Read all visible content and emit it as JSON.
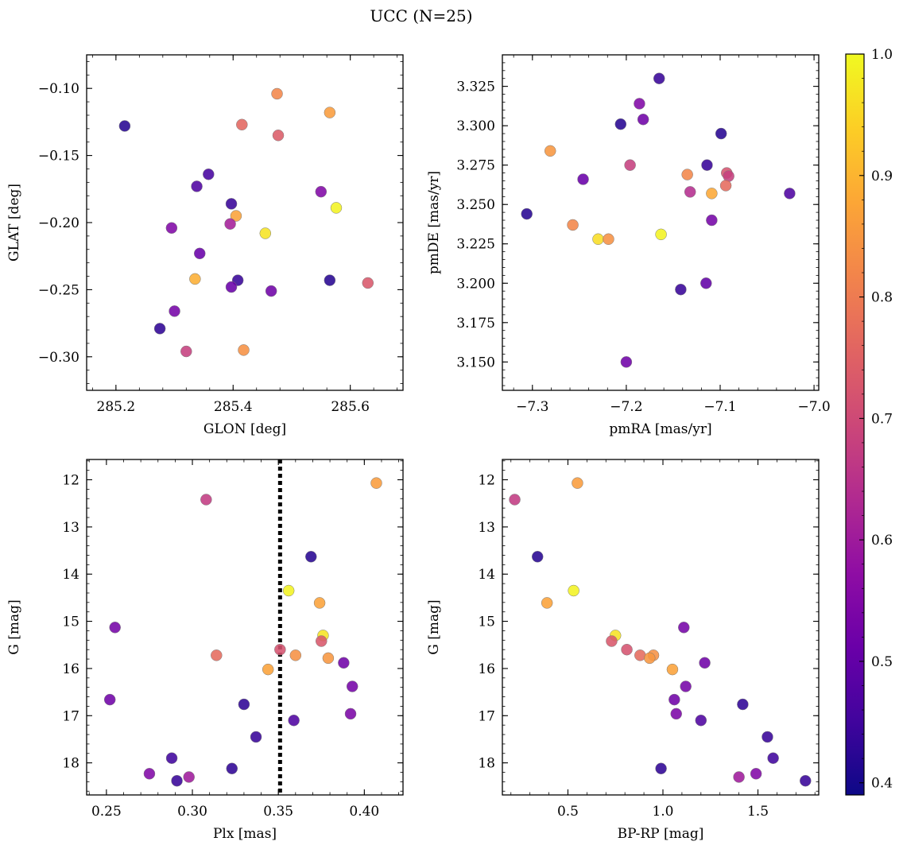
{
  "figure": {
    "title": "UCC (N=25)"
  },
  "colorbar": {
    "min": 0.39,
    "max": 1.0,
    "ticks": [
      0.4,
      0.5,
      0.6,
      0.7,
      0.8,
      0.9,
      1.0
    ],
    "tick_labels": [
      "0.4",
      "0.5",
      "0.6",
      "0.7",
      "0.8",
      "0.9",
      "1.0"
    ],
    "colormap": "plasma"
  },
  "chart_data": [
    {
      "type": "scatter",
      "xlabel": "GLON [deg]",
      "ylabel": "GLAT [deg]",
      "xlim": [
        285.15,
        285.69
      ],
      "ylim": [
        -0.325,
        -0.075
      ],
      "x_ticks": [
        285.2,
        285.4,
        285.6
      ],
      "x_tick_labels": [
        "285.2",
        "285.4",
        "285.6"
      ],
      "y_ticks": [
        -0.1,
        -0.15,
        -0.2,
        -0.25,
        -0.3
      ],
      "y_tick_labels": [
        "−0.10",
        "−0.15",
        "−0.20",
        "−0.25",
        "−0.30"
      ],
      "y_inverted": false,
      "points": [
        {
          "x": 285.215,
          "y": -0.128,
          "c": 0.42
        },
        {
          "x": 285.475,
          "y": -0.104,
          "c": 0.82
        },
        {
          "x": 285.565,
          "y": -0.118,
          "c": 0.86
        },
        {
          "x": 285.415,
          "y": -0.127,
          "c": 0.76
        },
        {
          "x": 285.477,
          "y": -0.135,
          "c": 0.74
        },
        {
          "x": 285.358,
          "y": -0.164,
          "c": 0.46
        },
        {
          "x": 285.338,
          "y": -0.173,
          "c": 0.47
        },
        {
          "x": 285.55,
          "y": -0.177,
          "c": 0.55
        },
        {
          "x": 285.397,
          "y": -0.186,
          "c": 0.44
        },
        {
          "x": 285.576,
          "y": -0.189,
          "c": 0.99
        },
        {
          "x": 285.405,
          "y": -0.195,
          "c": 0.87
        },
        {
          "x": 285.395,
          "y": -0.201,
          "c": 0.61
        },
        {
          "x": 285.295,
          "y": -0.204,
          "c": 0.55
        },
        {
          "x": 285.455,
          "y": -0.208,
          "c": 0.97
        },
        {
          "x": 285.343,
          "y": -0.223,
          "c": 0.51
        },
        {
          "x": 285.335,
          "y": -0.242,
          "c": 0.89
        },
        {
          "x": 285.408,
          "y": -0.243,
          "c": 0.44
        },
        {
          "x": 285.565,
          "y": -0.243,
          "c": 0.42
        },
        {
          "x": 285.63,
          "y": -0.245,
          "c": 0.73
        },
        {
          "x": 285.397,
          "y": -0.248,
          "c": 0.51
        },
        {
          "x": 285.465,
          "y": -0.251,
          "c": 0.52
        },
        {
          "x": 285.3,
          "y": -0.266,
          "c": 0.53
        },
        {
          "x": 285.275,
          "y": -0.279,
          "c": 0.43
        },
        {
          "x": 285.32,
          "y": -0.296,
          "c": 0.68
        },
        {
          "x": 285.418,
          "y": -0.295,
          "c": 0.84
        }
      ]
    },
    {
      "type": "scatter",
      "xlabel": "pmRA [mas/yr]",
      "ylabel": "pmDE [mas/yr]",
      "xlim": [
        -7.332,
        -6.995
      ],
      "ylim": [
        3.132,
        3.345
      ],
      "x_ticks": [
        -7.3,
        -7.2,
        -7.1,
        -7.0
      ],
      "x_tick_labels": [
        "−7.3",
        "−7.2",
        "−7.1",
        "−7.0"
      ],
      "y_ticks": [
        3.15,
        3.175,
        3.2,
        3.225,
        3.25,
        3.275,
        3.3,
        3.325
      ],
      "y_tick_labels": [
        "3.150",
        "3.175",
        "3.200",
        "3.225",
        "3.250",
        "3.275",
        "3.300",
        "3.325"
      ],
      "y_inverted": false,
      "points": [
        {
          "x": -7.165,
          "y": 3.33,
          "c": 0.44
        },
        {
          "x": -7.186,
          "y": 3.314,
          "c": 0.55
        },
        {
          "x": -7.182,
          "y": 3.304,
          "c": 0.52
        },
        {
          "x": -7.206,
          "y": 3.301,
          "c": 0.42
        },
        {
          "x": -7.099,
          "y": 3.295,
          "c": 0.42
        },
        {
          "x": -7.281,
          "y": 3.284,
          "c": 0.85
        },
        {
          "x": -7.196,
          "y": 3.275,
          "c": 0.68
        },
        {
          "x": -7.114,
          "y": 3.275,
          "c": 0.44
        },
        {
          "x": -7.135,
          "y": 3.269,
          "c": 0.82
        },
        {
          "x": -7.093,
          "y": 3.27,
          "c": 0.72
        },
        {
          "x": -7.091,
          "y": 3.268,
          "c": 0.68
        },
        {
          "x": -7.246,
          "y": 3.266,
          "c": 0.51
        },
        {
          "x": -7.094,
          "y": 3.262,
          "c": 0.77
        },
        {
          "x": -7.132,
          "y": 3.258,
          "c": 0.64
        },
        {
          "x": -7.109,
          "y": 3.257,
          "c": 0.88
        },
        {
          "x": -7.026,
          "y": 3.257,
          "c": 0.47
        },
        {
          "x": -7.306,
          "y": 3.244,
          "c": 0.42
        },
        {
          "x": -7.109,
          "y": 3.24,
          "c": 0.53
        },
        {
          "x": -7.257,
          "y": 3.237,
          "c": 0.82
        },
        {
          "x": -7.163,
          "y": 3.231,
          "c": 0.99
        },
        {
          "x": -7.23,
          "y": 3.228,
          "c": 0.96
        },
        {
          "x": -7.219,
          "y": 3.228,
          "c": 0.84
        },
        {
          "x": -7.115,
          "y": 3.2,
          "c": 0.5
        },
        {
          "x": -7.142,
          "y": 3.196,
          "c": 0.44
        },
        {
          "x": -7.2,
          "y": 3.15,
          "c": 0.52
        }
      ]
    },
    {
      "type": "scatter",
      "xlabel": "Plx [mas]",
      "ylabel": "G [mag]",
      "xlim": [
        0.2385,
        0.4225
      ],
      "ylim": [
        18.68,
        11.57
      ],
      "x_ticks": [
        0.25,
        0.3,
        0.35,
        0.4
      ],
      "x_tick_labels": [
        "0.25",
        "0.30",
        "0.35",
        "0.40"
      ],
      "y_ticks": [
        12,
        13,
        14,
        15,
        16,
        17,
        18
      ],
      "y_tick_labels": [
        "12",
        "13",
        "14",
        "15",
        "16",
        "17",
        "18"
      ],
      "y_inverted": true,
      "vline": {
        "x": 0.351,
        "style": "dotted",
        "color": "#000000"
      },
      "points": [
        {
          "x": 0.407,
          "y": 12.07,
          "c": 0.86
        },
        {
          "x": 0.308,
          "y": 12.42,
          "c": 0.67
        },
        {
          "x": 0.369,
          "y": 13.63,
          "c": 0.42
        },
        {
          "x": 0.356,
          "y": 14.35,
          "c": 0.99
        },
        {
          "x": 0.374,
          "y": 14.61,
          "c": 0.87
        },
        {
          "x": 0.255,
          "y": 15.13,
          "c": 0.53
        },
        {
          "x": 0.376,
          "y": 15.3,
          "c": 0.97
        },
        {
          "x": 0.375,
          "y": 15.42,
          "c": 0.73
        },
        {
          "x": 0.351,
          "y": 15.6,
          "c": 0.72
        },
        {
          "x": 0.314,
          "y": 15.72,
          "c": 0.77
        },
        {
          "x": 0.36,
          "y": 15.72,
          "c": 0.84
        },
        {
          "x": 0.379,
          "y": 15.78,
          "c": 0.85
        },
        {
          "x": 0.388,
          "y": 15.88,
          "c": 0.52
        },
        {
          "x": 0.344,
          "y": 16.02,
          "c": 0.87
        },
        {
          "x": 0.393,
          "y": 16.38,
          "c": 0.53
        },
        {
          "x": 0.252,
          "y": 16.66,
          "c": 0.52
        },
        {
          "x": 0.33,
          "y": 16.76,
          "c": 0.43
        },
        {
          "x": 0.392,
          "y": 16.96,
          "c": 0.54
        },
        {
          "x": 0.359,
          "y": 17.1,
          "c": 0.47
        },
        {
          "x": 0.337,
          "y": 17.45,
          "c": 0.44
        },
        {
          "x": 0.288,
          "y": 17.9,
          "c": 0.45
        },
        {
          "x": 0.323,
          "y": 18.12,
          "c": 0.43
        },
        {
          "x": 0.275,
          "y": 18.23,
          "c": 0.55
        },
        {
          "x": 0.298,
          "y": 18.3,
          "c": 0.6
        },
        {
          "x": 0.291,
          "y": 18.38,
          "c": 0.44
        }
      ]
    },
    {
      "type": "scatter",
      "xlabel": "BP-RP [mag]",
      "ylabel": "G [mag]",
      "xlim": [
        0.155,
        1.82
      ],
      "ylim": [
        18.68,
        11.57
      ],
      "x_ticks": [
        0.5,
        1.0,
        1.5
      ],
      "x_tick_labels": [
        "0.5",
        "1.0",
        "1.5"
      ],
      "y_ticks": [
        12,
        13,
        14,
        15,
        16,
        17,
        18
      ],
      "y_tick_labels": [
        "12",
        "13",
        "14",
        "15",
        "16",
        "17",
        "18"
      ],
      "y_inverted": true,
      "points": [
        {
          "x": 0.55,
          "y": 12.07,
          "c": 0.86
        },
        {
          "x": 0.22,
          "y": 12.42,
          "c": 0.67
        },
        {
          "x": 0.34,
          "y": 13.63,
          "c": 0.42
        },
        {
          "x": 0.53,
          "y": 14.35,
          "c": 0.99
        },
        {
          "x": 0.39,
          "y": 14.61,
          "c": 0.87
        },
        {
          "x": 1.11,
          "y": 15.13,
          "c": 0.53
        },
        {
          "x": 0.75,
          "y": 15.3,
          "c": 0.97
        },
        {
          "x": 0.73,
          "y": 15.42,
          "c": 0.73
        },
        {
          "x": 0.81,
          "y": 15.6,
          "c": 0.72
        },
        {
          "x": 0.88,
          "y": 15.72,
          "c": 0.77
        },
        {
          "x": 0.95,
          "y": 15.72,
          "c": 0.84
        },
        {
          "x": 0.93,
          "y": 15.78,
          "c": 0.85
        },
        {
          "x": 1.22,
          "y": 15.88,
          "c": 0.52
        },
        {
          "x": 1.05,
          "y": 16.02,
          "c": 0.87
        },
        {
          "x": 1.12,
          "y": 16.38,
          "c": 0.53
        },
        {
          "x": 1.06,
          "y": 16.66,
          "c": 0.52
        },
        {
          "x": 1.42,
          "y": 16.76,
          "c": 0.43
        },
        {
          "x": 1.07,
          "y": 16.96,
          "c": 0.54
        },
        {
          "x": 1.2,
          "y": 17.1,
          "c": 0.47
        },
        {
          "x": 1.55,
          "y": 17.45,
          "c": 0.44
        },
        {
          "x": 1.58,
          "y": 17.9,
          "c": 0.45
        },
        {
          "x": 0.99,
          "y": 18.12,
          "c": 0.43
        },
        {
          "x": 1.49,
          "y": 18.23,
          "c": 0.55
        },
        {
          "x": 1.4,
          "y": 18.3,
          "c": 0.6
        },
        {
          "x": 1.75,
          "y": 18.38,
          "c": 0.44
        }
      ]
    }
  ]
}
